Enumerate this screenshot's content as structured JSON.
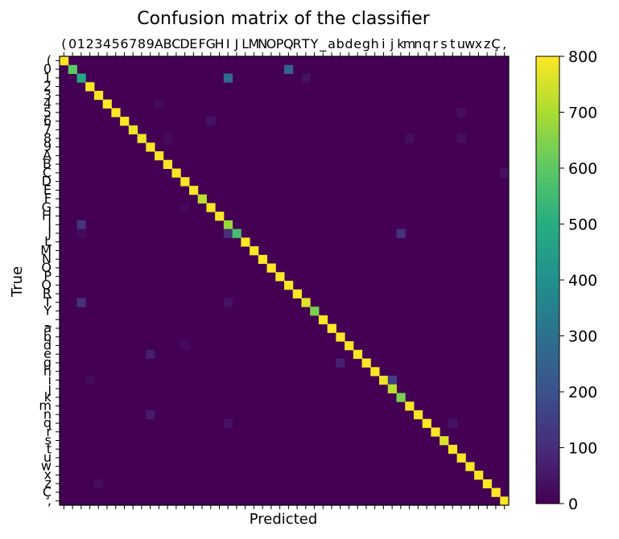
{
  "chart_data": {
    "type": "heatmap",
    "title": "Confusion matrix of the classifier",
    "xlabel": "Predicted",
    "ylabel": "True",
    "colorbar": {
      "min": 0,
      "max": 800,
      "ticks": [
        0,
        100,
        200,
        300,
        400,
        500,
        600,
        700,
        800
      ],
      "colormap": "viridis"
    },
    "classes": [
      "(",
      "0",
      "1",
      "2",
      "3",
      "4",
      "5",
      "6",
      "7",
      "8",
      "9",
      "A",
      "B",
      "C",
      "D",
      "E",
      "F",
      "G",
      "H",
      "I",
      "J",
      "L",
      "M",
      "N",
      "O",
      "P",
      "Q",
      "R",
      "T",
      "Y",
      "_",
      "a",
      "b",
      "d",
      "e",
      "g",
      "h",
      "i",
      "j",
      "k",
      "m",
      "n",
      "q",
      "r",
      "s",
      "t",
      "u",
      "w",
      "x",
      "z",
      "Ç",
      ","
    ],
    "diagonal": [
      800,
      600,
      480,
      800,
      800,
      800,
      800,
      800,
      780,
      780,
      800,
      800,
      800,
      800,
      800,
      800,
      720,
      800,
      800,
      680,
      560,
      800,
      800,
      800,
      800,
      800,
      800,
      800,
      760,
      640,
      800,
      800,
      800,
      800,
      800,
      800,
      800,
      780,
      720,
      640,
      800,
      800,
      800,
      800,
      760,
      800,
      800,
      800,
      800,
      800,
      800,
      800
    ],
    "off_diagonal": [
      {
        "true": "0",
        "predicted": "Q",
        "value": 250
      },
      {
        "true": "1",
        "predicted": "I",
        "value": 280
      },
      {
        "true": "1",
        "predicted": "T",
        "value": 40
      },
      {
        "true": "4",
        "predicted": "A",
        "value": 25
      },
      {
        "true": "5",
        "predicted": "u",
        "value": 30
      },
      {
        "true": "6",
        "predicted": "G",
        "value": 40
      },
      {
        "true": "8",
        "predicted": "m",
        "value": 30
      },
      {
        "true": "8",
        "predicted": "u",
        "value": 30
      },
      {
        "true": "8",
        "predicted": "B",
        "value": 20
      },
      {
        "true": "C",
        "predicted": ",",
        "value": 40
      },
      {
        "true": "G",
        "predicted": "D",
        "value": 20
      },
      {
        "true": "I",
        "predicted": "1",
        "value": 130
      },
      {
        "true": "J",
        "predicted": "I",
        "value": 100
      },
      {
        "true": "J",
        "predicted": "k",
        "value": 110
      },
      {
        "true": "J",
        "predicted": "1",
        "value": 20
      },
      {
        "true": "T",
        "predicted": "1",
        "value": 110
      },
      {
        "true": "T",
        "predicted": "I",
        "value": 40
      },
      {
        "true": "d",
        "predicted": "D",
        "value": 20
      },
      {
        "true": "e",
        "predicted": "9",
        "value": 70
      },
      {
        "true": "g",
        "predicted": "b",
        "value": 70
      },
      {
        "true": "i",
        "predicted": "j",
        "value": 150
      },
      {
        "true": "i",
        "predicted": "2",
        "value": 20
      },
      {
        "true": "n",
        "predicted": "9",
        "value": 60
      },
      {
        "true": "q",
        "predicted": "I",
        "value": 40
      },
      {
        "true": "q",
        "predicted": "t",
        "value": 40
      },
      {
        "true": "z",
        "predicted": "3",
        "value": 25
      }
    ]
  }
}
